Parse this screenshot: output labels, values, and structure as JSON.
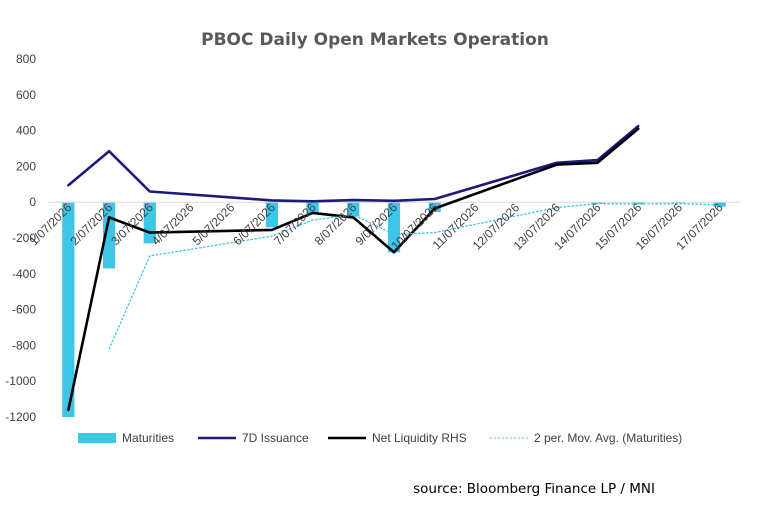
{
  "chart_data": {
    "type": "bar",
    "title": "PBOC Daily Open Markets Operation",
    "source": "source: Bloomberg Finance LP / MNI",
    "categories": [
      "1/07/2026",
      "2/07/2026",
      "3/07/2026",
      "4/07/2026",
      "5/07/2026",
      "6/07/2026",
      "7/07/2026",
      "8/07/2026",
      "9/07/2026",
      "10/07/2026",
      "11/07/2026",
      "12/07/2026",
      "13/07/2026",
      "14/07/2026",
      "15/07/2026",
      "16/07/2026",
      "17/07/2026"
    ],
    "yticks": [
      800,
      600,
      400,
      200,
      0,
      -200,
      -400,
      -600,
      -800,
      -1000,
      -1200
    ],
    "ylim": [
      -1200,
      800
    ],
    "grid": false,
    "legend_position": "bottom",
    "series": [
      {
        "name": "Maturities",
        "type": "bar",
        "color": "#3ec6e6",
        "values": [
          -1200,
          -370,
          -230,
          null,
          null,
          -140,
          -60,
          -80,
          -280,
          -55,
          null,
          null,
          null,
          -8,
          -12,
          -5,
          -25
        ]
      },
      {
        "name": "7D Issuance",
        "type": "line",
        "color": "#1b1b7a",
        "values": [
          95,
          285,
          60,
          null,
          null,
          10,
          5,
          12,
          8,
          18,
          null,
          null,
          220,
          235,
          425,
          null,
          null
        ]
      },
      {
        "name": "Net Liquidity RHS",
        "type": "line",
        "color": "#000000",
        "values": [
          -1160,
          -85,
          -170,
          null,
          null,
          -155,
          -60,
          -85,
          -280,
          -35,
          null,
          null,
          210,
          220,
          410,
          null,
          null
        ]
      },
      {
        "name": "2 per. Mov. Avg. (Maturities)",
        "type": "line",
        "style": "dotted",
        "color": "#3ec6e6",
        "values": [
          null,
          -820,
          -300,
          null,
          null,
          -190,
          -100,
          -70,
          -180,
          -170,
          null,
          null,
          -30,
          -8,
          -10,
          -8,
          -15
        ]
      }
    ]
  }
}
